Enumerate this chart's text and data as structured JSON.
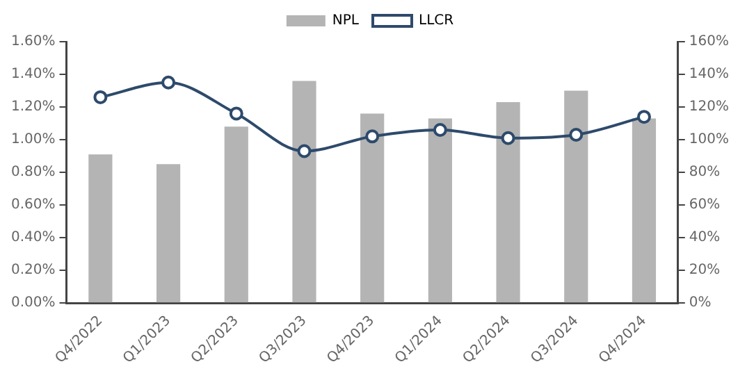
{
  "chart_data": {
    "type": "bar",
    "categories": [
      "Q4/2022",
      "Q1/2023",
      "Q2/2023",
      "Q3/2023",
      "Q4/2023",
      "Q1/2024",
      "Q2/2024",
      "Q3/2024",
      "Q4/2024"
    ],
    "series": [
      {
        "name": "NPL",
        "color": "#b4b4b4",
        "values": [
          0.91,
          0.85,
          1.08,
          1.36,
          1.16,
          1.13,
          1.23,
          1.3,
          1.13
        ]
      },
      {
        "name": "LLCR",
        "type": "line",
        "axis": "y2",
        "color": "#2e4a6b",
        "values": [
          126,
          135,
          116,
          93,
          102,
          106,
          101,
          103,
          114
        ]
      }
    ],
    "ylim": [
      0,
      1.6
    ],
    "yticks": [
      {
        "value": 0,
        "label": "0.00%"
      },
      {
        "value": 0.2,
        "label": "0.20%"
      },
      {
        "value": 0.4,
        "label": "0.40%"
      },
      {
        "value": 0.6,
        "label": "0.60%"
      },
      {
        "value": 0.8,
        "label": "0.80%"
      },
      {
        "value": 1.0,
        "label": "1.00%"
      },
      {
        "value": 1.2,
        "label": "1.20%"
      },
      {
        "value": 1.4,
        "label": "1.40%"
      },
      {
        "value": 1.6,
        "label": "1.60%"
      }
    ],
    "y2lim": [
      0,
      160
    ],
    "y2ticks": [
      {
        "value": 0,
        "label": "0%"
      },
      {
        "value": 20,
        "label": "20%"
      },
      {
        "value": 40,
        "label": "40%"
      },
      {
        "value": 60,
        "label": "60%"
      },
      {
        "value": 80,
        "label": "80%"
      },
      {
        "value": 100,
        "label": "100%"
      },
      {
        "value": 120,
        "label": "120%"
      },
      {
        "value": 140,
        "label": "140%"
      },
      {
        "value": 160,
        "label": "160%"
      }
    ],
    "grid": false,
    "legend": "top",
    "marker": "circle"
  }
}
